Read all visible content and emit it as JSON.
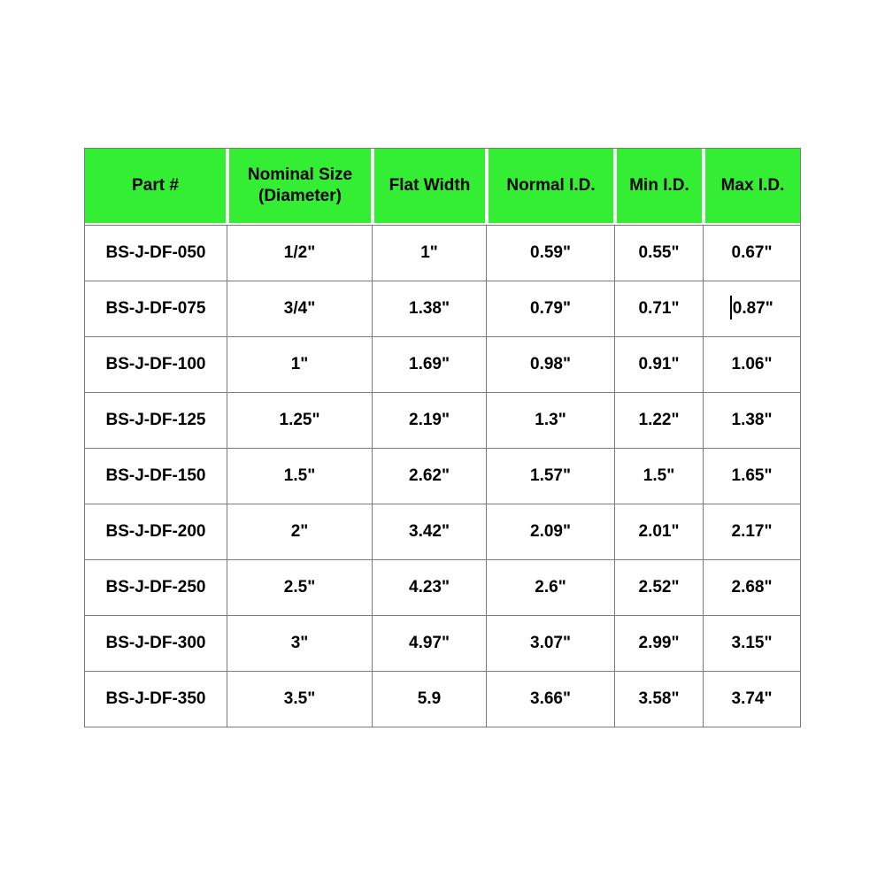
{
  "colors": {
    "header_bg": "#33ee33",
    "grid": "#7b7b7b",
    "text": "#000000",
    "page_bg": "#ffffff"
  },
  "chart_data": {
    "type": "table",
    "title": "",
    "columns": [
      "Part #",
      "Nominal Size (Diameter)",
      "Flat Width",
      "Normal I.D.",
      "Min I.D.",
      "Max I.D."
    ],
    "rows": [
      [
        "BS-J-DF-050",
        "1/2\"",
        "1\"",
        "0.59\"",
        "0.55\"",
        "0.67\""
      ],
      [
        "BS-J-DF-075",
        "3/4\"",
        "1.38\"",
        "0.79\"",
        "0.71\"",
        "0.87\""
      ],
      [
        "BS-J-DF-100",
        "1\"",
        "1.69\"",
        "0.98\"",
        "0.91\"",
        "1.06\""
      ],
      [
        "BS-J-DF-125",
        "1.25\"",
        "2.19\"",
        "1.3\"",
        "1.22\"",
        "1.38\""
      ],
      [
        "BS-J-DF-150",
        "1.5\"",
        "2.62\"",
        "1.57\"",
        "1.5\"",
        "1.65\""
      ],
      [
        "BS-J-DF-200",
        "2\"",
        "3.42\"",
        "2.09\"",
        "2.01\"",
        "2.17\""
      ],
      [
        "BS-J-DF-250",
        "2.5\"",
        "4.23\"",
        "2.6\"",
        "2.52\"",
        "2.68\""
      ],
      [
        "BS-J-DF-300",
        "3\"",
        "4.97\"",
        "3.07\"",
        "2.99\"",
        "3.15\""
      ],
      [
        "BS-J-DF-350",
        "3.5\"",
        "5.9",
        "3.66\"",
        "3.58\"",
        "3.74\""
      ]
    ]
  },
  "editor": {
    "cursor": {
      "row_index": 1,
      "col_index": 5,
      "position": "before-text"
    }
  }
}
